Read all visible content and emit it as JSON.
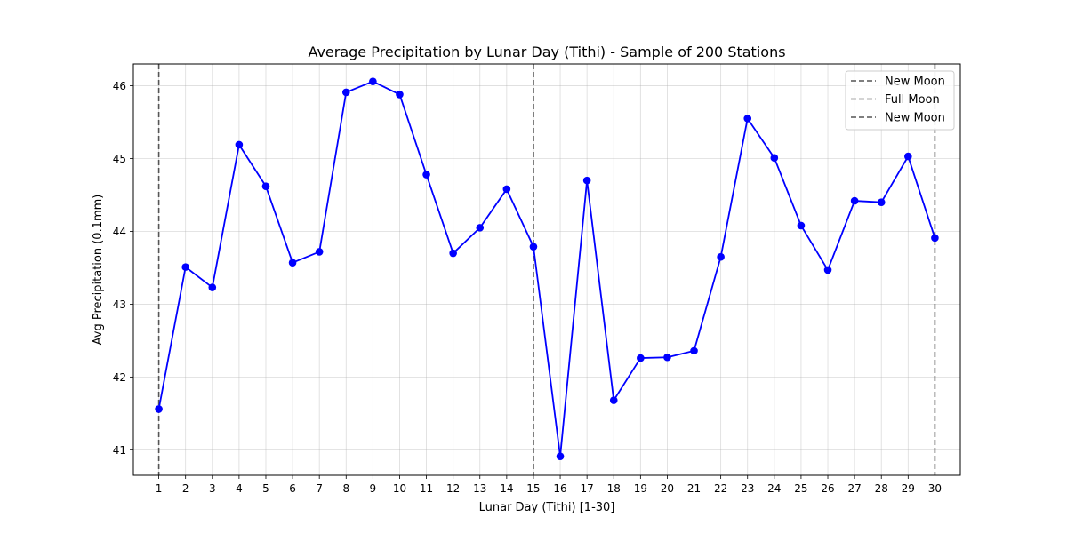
{
  "chart_data": {
    "type": "line",
    "title": "Average Precipitation by Lunar Day (Tithi) - Sample of 200 Stations",
    "xlabel": "Lunar Day (Tithi) [1-30]",
    "ylabel": "Avg Precipitation (0.1mm)",
    "x": [
      1,
      2,
      3,
      4,
      5,
      6,
      7,
      8,
      9,
      10,
      11,
      12,
      13,
      14,
      15,
      16,
      17,
      18,
      19,
      20,
      21,
      22,
      23,
      24,
      25,
      26,
      27,
      28,
      29,
      30
    ],
    "series": [
      {
        "values": [
          41.56,
          43.51,
          43.23,
          45.19,
          44.62,
          43.57,
          43.72,
          45.91,
          46.06,
          45.88,
          44.78,
          43.7,
          44.05,
          44.58,
          43.79,
          40.91,
          44.7,
          41.68,
          42.26,
          42.27,
          42.36,
          43.65,
          45.55,
          45.01,
          44.08,
          43.47,
          44.42,
          44.4,
          45.03,
          43.91
        ],
        "color": "#0000ff",
        "marker": "circle"
      }
    ],
    "xlim": [
      0.05,
      30.95
    ],
    "ylim": [
      40.65,
      46.3
    ],
    "xticks": [
      1,
      2,
      3,
      4,
      5,
      6,
      7,
      8,
      9,
      10,
      11,
      12,
      13,
      14,
      15,
      16,
      17,
      18,
      19,
      20,
      21,
      22,
      23,
      24,
      25,
      26,
      27,
      28,
      29,
      30
    ],
    "yticks": [
      41,
      42,
      43,
      44,
      45,
      46
    ],
    "grid": true,
    "vlines": [
      {
        "x": 1,
        "label": "New Moon",
        "style": "dashed",
        "color": "#555555"
      },
      {
        "x": 15,
        "label": "Full Moon",
        "style": "dashed",
        "color": "#555555"
      },
      {
        "x": 30,
        "label": "New Moon",
        "style": "dashed",
        "color": "#555555"
      }
    ],
    "legend": {
      "placement": "top-right",
      "entries": [
        "New Moon",
        "Full Moon",
        "New Moon"
      ]
    }
  }
}
